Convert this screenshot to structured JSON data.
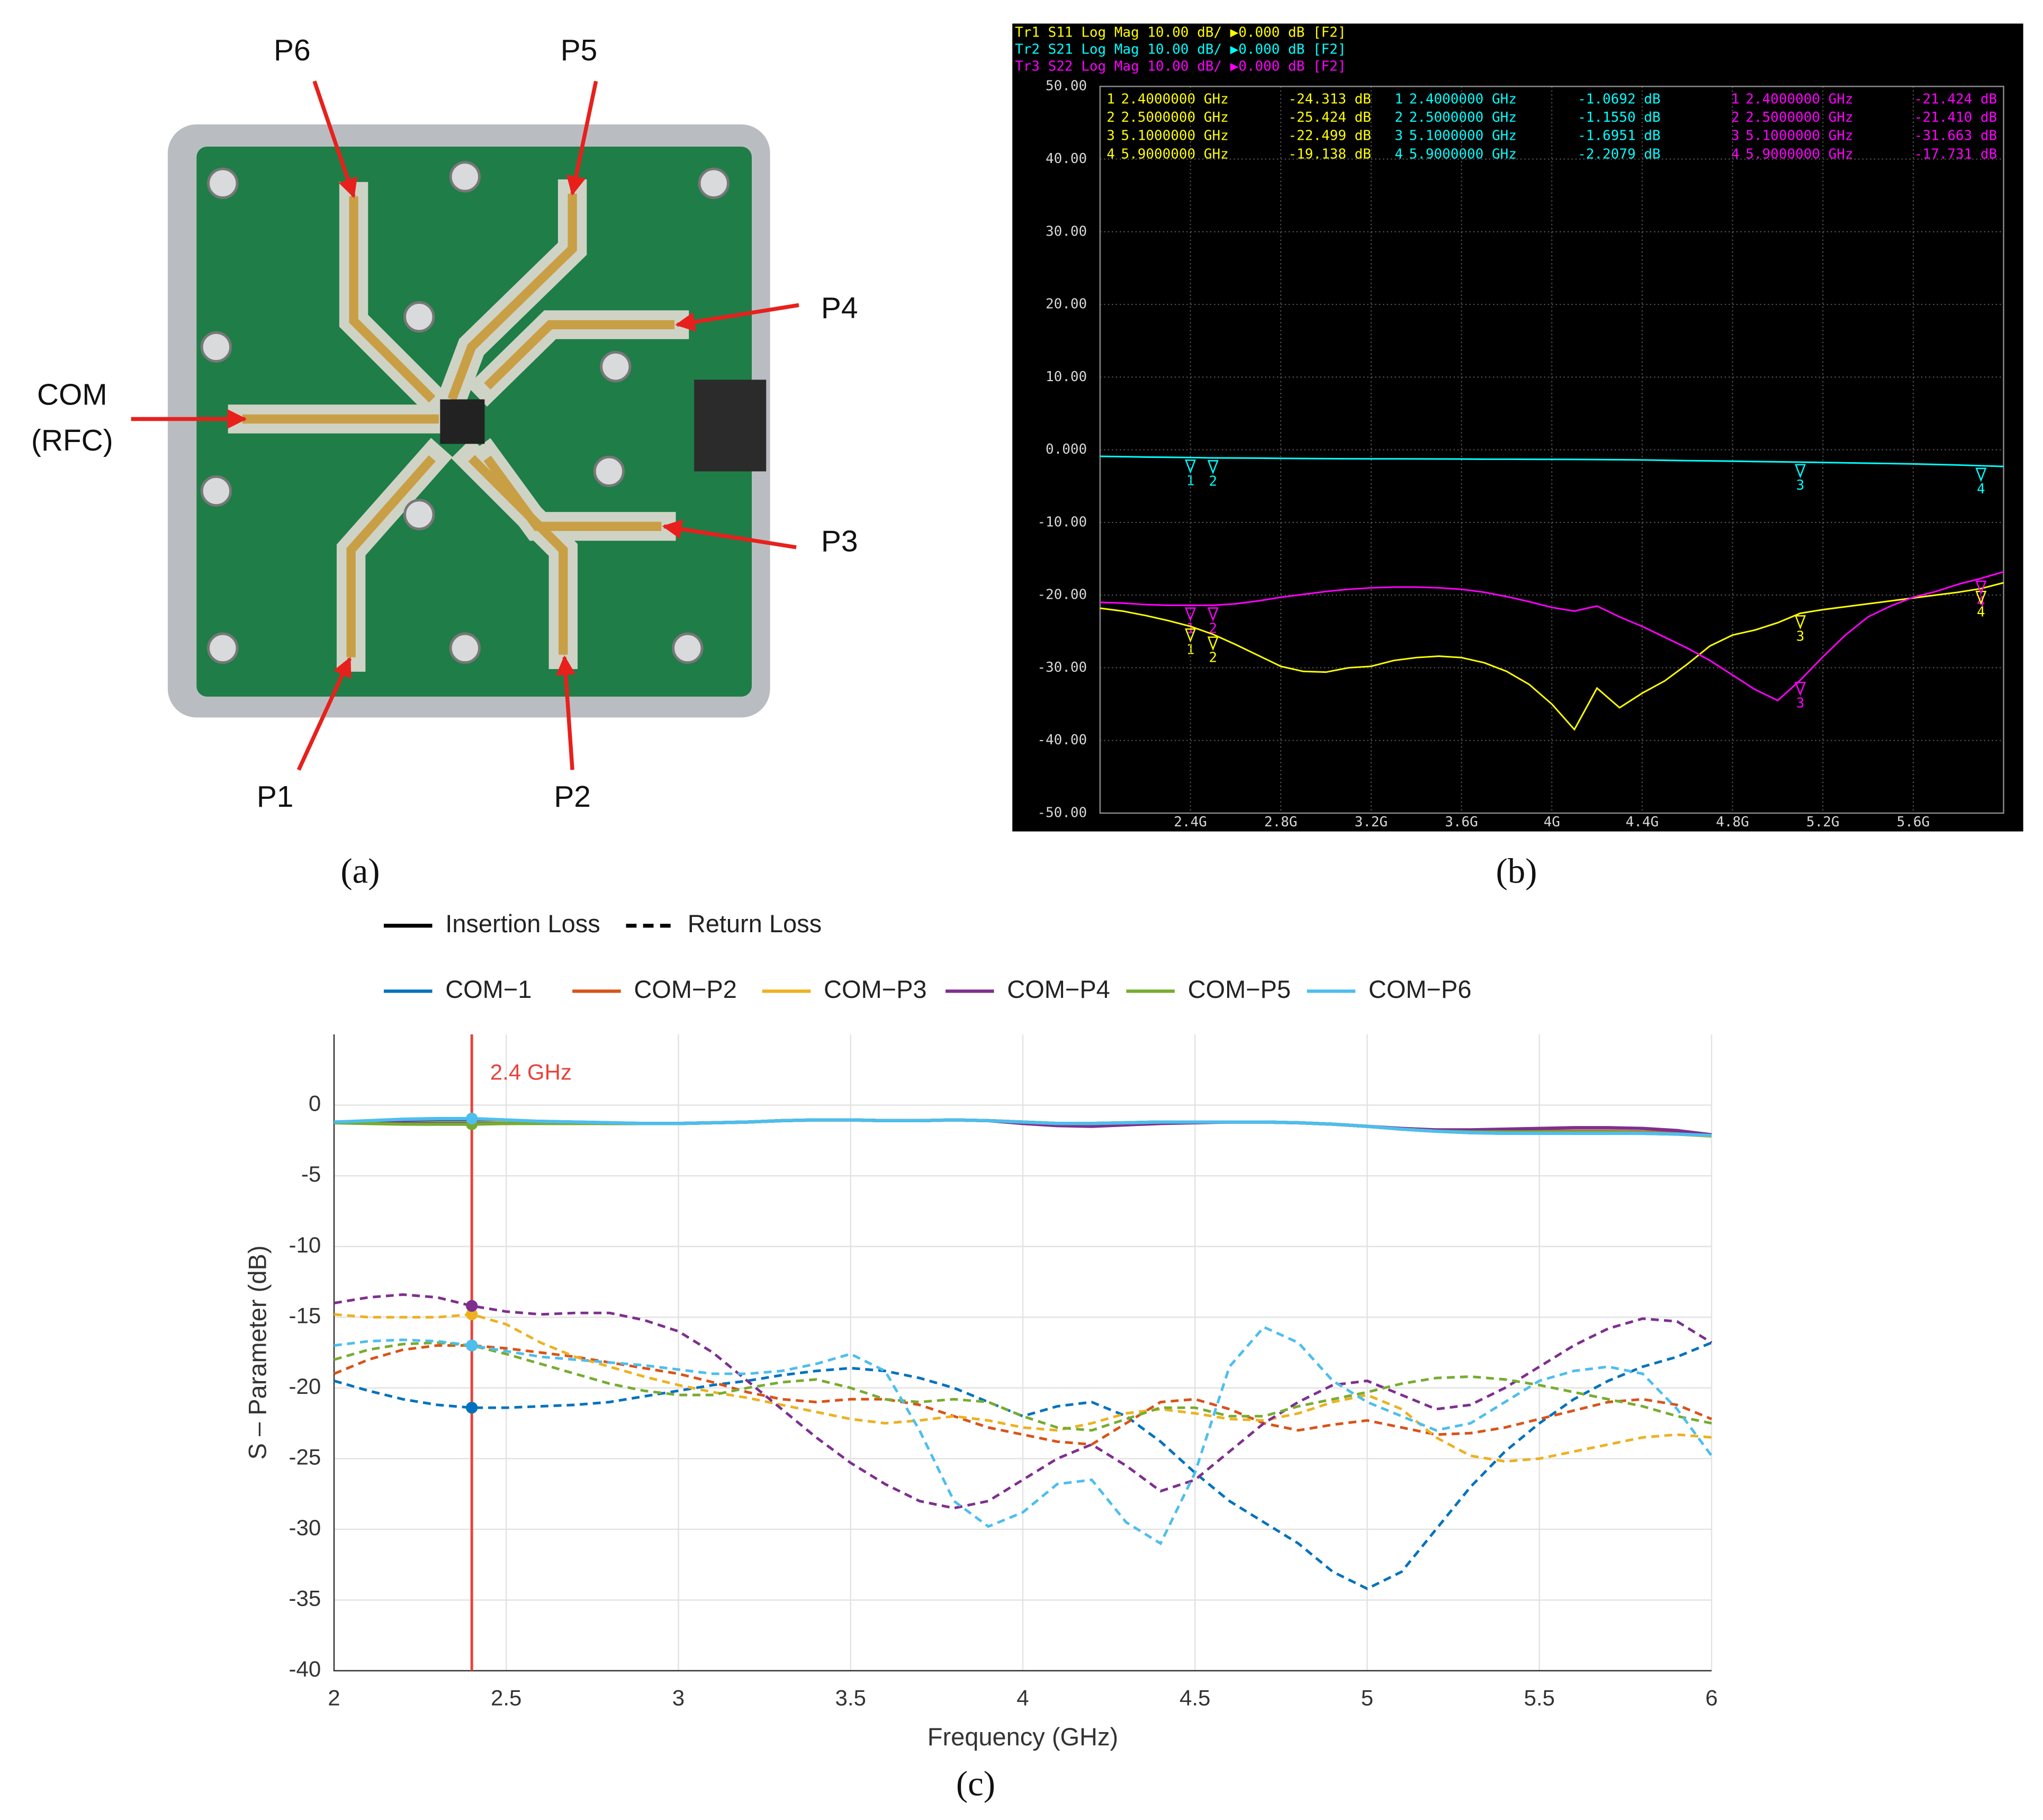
{
  "panel_a": {
    "panel_label": "(a)",
    "labels": [
      "P6",
      "P5",
      "P4",
      "COM",
      "(RFC)",
      "P3",
      "P1",
      "P2"
    ]
  },
  "chart_data": [
    {
      "type": "line",
      "panel_label": "(b)",
      "background": "#000000",
      "grid": true,
      "x": [
        2,
        2.1,
        2.2,
        2.3,
        2.4,
        2.5,
        2.6,
        2.7,
        2.8,
        2.9,
        3,
        3.1,
        3.2,
        3.3,
        3.4,
        3.5,
        3.6,
        3.7,
        3.8,
        3.9,
        4,
        4.1,
        4.2,
        4.3,
        4.4,
        4.5,
        4.6,
        4.7,
        4.8,
        4.9,
        5,
        5.1,
        5.2,
        5.3,
        5.4,
        5.5,
        5.6,
        5.7,
        5.8,
        5.9,
        6
      ],
      "xlim": [
        2,
        6
      ],
      "xticks": [
        {
          "value": 2.4,
          "label": "2.4G"
        },
        {
          "value": 2.8,
          "label": "2.8G"
        },
        {
          "value": 3.2,
          "label": "3.2G"
        },
        {
          "value": 3.6,
          "label": "3.6G"
        },
        {
          "value": 4,
          "label": "4G"
        },
        {
          "value": 4.4,
          "label": "4.4G"
        },
        {
          "value": 4.8,
          "label": "4.8G"
        },
        {
          "value": 5.2,
          "label": "5.2G"
        },
        {
          "value": 5.6,
          "label": "5.6G"
        }
      ],
      "ylim": [
        -50,
        50
      ],
      "yticks": [
        {
          "value": 50,
          "label": "50.00"
        },
        {
          "value": 40,
          "label": "40.00"
        },
        {
          "value": 30,
          "label": "30.00"
        },
        {
          "value": 20,
          "label": "20.00"
        },
        {
          "value": 10,
          "label": "10.00"
        },
        {
          "value": 0,
          "label": "0.000"
        },
        {
          "value": -10,
          "label": "-10.00"
        },
        {
          "value": -20,
          "label": "-20.00"
        },
        {
          "value": -30,
          "label": "-30.00"
        },
        {
          "value": -40,
          "label": "-40.00"
        },
        {
          "value": -50,
          "label": "-50.00"
        }
      ],
      "series": [
        {
          "name": "Tr1 S11 Log Mag 10.00 dB/ ▶0.000 dB [F2]",
          "color": "#ffff00",
          "values": [
            -21.8,
            -22.2,
            -22.8,
            -23.5,
            -24.3,
            -25.4,
            -26.8,
            -28.3,
            -29.8,
            -30.5,
            -30.6,
            -30,
            -29.8,
            -29,
            -28.6,
            -28.4,
            -28.6,
            -29.3,
            -30.5,
            -32.3,
            -35,
            -38.5,
            -32.8,
            -35.5,
            -33.5,
            -31.8,
            -29.5,
            -27,
            -25.5,
            -24.8,
            -23.8,
            -22.5,
            -22,
            -21.6,
            -21.2,
            -20.8,
            -20.4,
            -20,
            -19.6,
            -19.1,
            -18.3
          ],
          "markers": {
            "names": [
              "1",
              "2",
              "3",
              "4"
            ],
            "x": [
              2.4,
              2.5,
              5.1,
              5.9
            ],
            "x_labels": [
              "2.4000000 GHz",
              "2.5000000 GHz",
              "5.1000000 GHz",
              "5.9000000 GHz"
            ],
            "values": [
              -24.313,
              -25.424,
              -22.499,
              -19.138
            ],
            "value_labels": [
              "-24.313 dB",
              "-25.424 dB",
              "-22.499 dB",
              "-19.138 dB"
            ]
          }
        },
        {
          "name": "Tr2 S21 Log Mag 10.00 dB/ ▶0.000 dB [F2]",
          "color": "#00ffff",
          "values": [
            -0.9,
            -0.95,
            -1,
            -1.03,
            -1.07,
            -1.12,
            -1.13,
            -1.15,
            -1.18,
            -1.2,
            -1.22,
            -1.24,
            -1.25,
            -1.25,
            -1.26,
            -1.27,
            -1.28,
            -1.3,
            -1.3,
            -1.31,
            -1.32,
            -1.33,
            -1.35,
            -1.37,
            -1.4,
            -1.45,
            -1.5,
            -1.53,
            -1.57,
            -1.62,
            -1.66,
            -1.7,
            -1.75,
            -1.8,
            -1.85,
            -1.9,
            -1.95,
            -2.02,
            -2.1,
            -2.2,
            -2.3
          ],
          "markers": {
            "names": [
              "1",
              "2",
              "3",
              "4"
            ],
            "x": [
              2.4,
              2.5,
              5.1,
              5.9
            ],
            "x_labels": [
              "2.4000000 GHz",
              "2.5000000 GHz",
              "5.1000000 GHz",
              "5.9000000 GHz"
            ],
            "values": [
              -1.0692,
              -1.155,
              -1.6951,
              -2.2079
            ],
            "value_labels": [
              "-1.0692 dB",
              "-1.1550 dB",
              "-1.6951 dB",
              "-2.2079 dB"
            ]
          }
        },
        {
          "name": "Tr3 S22 Log Mag 10.00 dB/ ▶0.000 dB [F2]",
          "color": "#ff00ff",
          "values": [
            -21,
            -21.1,
            -21.3,
            -21.4,
            -21.4,
            -21.4,
            -21.2,
            -20.8,
            -20.3,
            -19.9,
            -19.5,
            -19.2,
            -19,
            -18.9,
            -18.9,
            -19,
            -19.2,
            -19.6,
            -20.2,
            -20.9,
            -21.7,
            -22.2,
            -21.5,
            -23,
            -24.3,
            -25.8,
            -27.3,
            -29,
            -31,
            -33,
            -34.5,
            -31.7,
            -28.5,
            -25.5,
            -23,
            -21.5,
            -20.3,
            -19.5,
            -18.5,
            -17.7,
            -16.8
          ],
          "markers": {
            "names": [
              "1",
              "2",
              "3",
              "4"
            ],
            "x": [
              2.4,
              2.5,
              5.1,
              5.9
            ],
            "x_labels": [
              "2.4000000 GHz",
              "2.5000000 GHz",
              "5.1000000 GHz",
              "5.9000000 GHz"
            ],
            "values": [
              -21.424,
              -21.41,
              -31.663,
              -17.731
            ],
            "value_labels": [
              "-21.424 dB",
              "-21.410 dB",
              "-31.663 dB",
              "-17.731 dB"
            ]
          }
        }
      ]
    },
    {
      "type": "line",
      "panel_label": "(c)",
      "grid": true,
      "x_label": "Frequency (GHz)",
      "y_label": "S – Parameter (dB)",
      "style_legend": [
        {
          "name": "Insertion Loss",
          "dashed": false
        },
        {
          "name": "Return Loss",
          "dashed": true
        }
      ],
      "marker": {
        "x": 2.4,
        "label": "2.4 GHz",
        "color": "#e8423a"
      },
      "x": [
        2,
        2.1,
        2.2,
        2.3,
        2.4,
        2.5,
        2.6,
        2.7,
        2.8,
        2.9,
        3,
        3.1,
        3.2,
        3.3,
        3.4,
        3.5,
        3.6,
        3.7,
        3.8,
        3.9,
        4,
        4.1,
        4.2,
        4.3,
        4.4,
        4.5,
        4.6,
        4.7,
        4.8,
        4.9,
        5,
        5.1,
        5.2,
        5.3,
        5.4,
        5.5,
        5.6,
        5.7,
        5.8,
        5.9,
        6
      ],
      "xlim": [
        2,
        6
      ],
      "xticks": [
        2,
        2.5,
        3,
        3.5,
        4,
        4.5,
        5,
        5.5,
        6
      ],
      "ylim": [
        -40,
        5
      ],
      "yticks": [
        0,
        -5,
        -10,
        -15,
        -20,
        -25,
        -30,
        -35,
        -40
      ],
      "series": [
        {
          "name": "COM−1",
          "color": "#0072bd",
          "insertion_loss": [
            -1.2,
            -1.15,
            -1.1,
            -1.05,
            -1.05,
            -1.1,
            -1.15,
            -1.2,
            -1.25,
            -1.3,
            -1.3,
            -1.25,
            -1.2,
            -1.1,
            -1.05,
            -1.05,
            -1.1,
            -1.1,
            -1.05,
            -1.1,
            -1.2,
            -1.3,
            -1.3,
            -1.25,
            -1.2,
            -1.2,
            -1.2,
            -1.2,
            -1.25,
            -1.35,
            -1.5,
            -1.7,
            -1.85,
            -1.95,
            -2,
            -2,
            -2,
            -2,
            -2,
            -2.05,
            -2.15
          ],
          "return_loss": [
            -19.5,
            -20.2,
            -20.8,
            -21.2,
            -21.4,
            -21.4,
            -21.3,
            -21.2,
            -21,
            -20.6,
            -20.2,
            -19.8,
            -19.5,
            -19.1,
            -18.8,
            -18.6,
            -18.8,
            -19.3,
            -20,
            -21,
            -22,
            -21.3,
            -21,
            -22,
            -23.8,
            -26,
            -28,
            -29.5,
            -31,
            -33,
            -34.2,
            -33,
            -30,
            -27,
            -24.5,
            -22.5,
            -20.8,
            -19.5,
            -18.5,
            -17.8,
            -16.8
          ]
        },
        {
          "name": "COM−P2",
          "color": "#d95319",
          "insertion_loss": [
            -1.25,
            -1.25,
            -1.3,
            -1.3,
            -1.3,
            -1.3,
            -1.25,
            -1.25,
            -1.3,
            -1.3,
            -1.3,
            -1.25,
            -1.2,
            -1.1,
            -1.05,
            -1.05,
            -1.1,
            -1.1,
            -1.05,
            -1.1,
            -1.2,
            -1.3,
            -1.3,
            -1.25,
            -1.2,
            -1.2,
            -1.2,
            -1.2,
            -1.25,
            -1.35,
            -1.5,
            -1.7,
            -1.8,
            -1.85,
            -1.85,
            -1.85,
            -1.85,
            -1.85,
            -1.9,
            -2,
            -2.15
          ],
          "return_loss": [
            -19,
            -18,
            -17.3,
            -17,
            -17,
            -17.2,
            -17.5,
            -17.8,
            -18.2,
            -18.6,
            -19,
            -19.6,
            -20.3,
            -20.8,
            -21,
            -20.8,
            -20.8,
            -21.2,
            -22,
            -22.8,
            -23.3,
            -23.8,
            -24,
            -22.5,
            -21,
            -20.8,
            -21.5,
            -22.5,
            -23,
            -22.6,
            -22.3,
            -22.8,
            -23.3,
            -23.2,
            -22.8,
            -22.2,
            -21.6,
            -21,
            -20.8,
            -21.2,
            -22.2
          ]
        },
        {
          "name": "COM−P3",
          "color": "#edb120",
          "insertion_loss": [
            -1.2,
            -1.2,
            -1.25,
            -1.25,
            -1.25,
            -1.25,
            -1.25,
            -1.25,
            -1.3,
            -1.3,
            -1.3,
            -1.25,
            -1.2,
            -1.1,
            -1.05,
            -1.05,
            -1.1,
            -1.1,
            -1.05,
            -1.1,
            -1.2,
            -1.3,
            -1.3,
            -1.25,
            -1.2,
            -1.2,
            -1.2,
            -1.2,
            -1.25,
            -1.35,
            -1.5,
            -1.7,
            -1.85,
            -1.95,
            -2,
            -2,
            -2,
            -2,
            -2,
            -2.05,
            -2.2
          ],
          "return_loss": [
            -14.8,
            -15,
            -15,
            -15,
            -14.8,
            -15.5,
            -16.8,
            -17.8,
            -18.5,
            -19.2,
            -19.8,
            -20.3,
            -20.7,
            -21.2,
            -21.7,
            -22.2,
            -22.5,
            -22.3,
            -22,
            -22.3,
            -22.8,
            -23,
            -22.5,
            -21.8,
            -21.5,
            -21.8,
            -22.2,
            -22.3,
            -21.8,
            -21,
            -20.5,
            -21.5,
            -23.5,
            -24.8,
            -25.2,
            -25,
            -24.5,
            -24,
            -23.5,
            -23.3,
            -23.5
          ]
        },
        {
          "name": "COM−P4",
          "color": "#7e2f8e",
          "insertion_loss": [
            -1.2,
            -1.2,
            -1.25,
            -1.3,
            -1.3,
            -1.3,
            -1.25,
            -1.25,
            -1.3,
            -1.3,
            -1.3,
            -1.25,
            -1.2,
            -1.1,
            -1.05,
            -1.05,
            -1.1,
            -1.1,
            -1.05,
            -1.1,
            -1.3,
            -1.45,
            -1.5,
            -1.4,
            -1.3,
            -1.25,
            -1.2,
            -1.2,
            -1.25,
            -1.35,
            -1.5,
            -1.65,
            -1.75,
            -1.75,
            -1.7,
            -1.65,
            -1.6,
            -1.6,
            -1.65,
            -1.8,
            -2.1
          ],
          "return_loss": [
            -14,
            -13.6,
            -13.4,
            -13.6,
            -14.2,
            -14.6,
            -14.8,
            -14.7,
            -14.7,
            -15.2,
            -16,
            -17.5,
            -19.5,
            -21.5,
            -23.5,
            -25.3,
            -26.8,
            -28,
            -28.5,
            -28,
            -26.5,
            -25,
            -24,
            -25.5,
            -27.3,
            -26.5,
            -24.5,
            -22.5,
            -21,
            -19.8,
            -19.5,
            -20.5,
            -21.5,
            -21.2,
            -20,
            -18.5,
            -17,
            -15.8,
            -15.1,
            -15.3,
            -16.8
          ]
        },
        {
          "name": "COM−P5",
          "color": "#77ac30",
          "insertion_loss": [
            -1.25,
            -1.3,
            -1.35,
            -1.35,
            -1.35,
            -1.3,
            -1.3,
            -1.3,
            -1.3,
            -1.3,
            -1.3,
            -1.25,
            -1.2,
            -1.1,
            -1.05,
            -1.05,
            -1.1,
            -1.1,
            -1.05,
            -1.1,
            -1.2,
            -1.3,
            -1.3,
            -1.25,
            -1.2,
            -1.2,
            -1.2,
            -1.2,
            -1.25,
            -1.35,
            -1.5,
            -1.7,
            -1.85,
            -1.9,
            -1.9,
            -1.9,
            -1.9,
            -1.9,
            -1.95,
            -2.05,
            -2.15
          ],
          "return_loss": [
            -18,
            -17.3,
            -16.9,
            -16.8,
            -17,
            -17.6,
            -18.3,
            -19,
            -19.7,
            -20.2,
            -20.5,
            -20.5,
            -20,
            -19.6,
            -19.4,
            -20,
            -20.8,
            -21,
            -20.8,
            -21,
            -22,
            -22.8,
            -23,
            -22.2,
            -21.4,
            -21.4,
            -22,
            -22,
            -21.3,
            -20.8,
            -20.3,
            -19.7,
            -19.3,
            -19.2,
            -19.4,
            -19.8,
            -20.3,
            -20.8,
            -21.3,
            -22,
            -22.5
          ]
        },
        {
          "name": "COM−P6",
          "color": "#4dbeee",
          "insertion_loss": [
            -1.2,
            -1.1,
            -1,
            -0.95,
            -0.95,
            -1.05,
            -1.15,
            -1.2,
            -1.25,
            -1.3,
            -1.3,
            -1.25,
            -1.2,
            -1.1,
            -1.05,
            -1.05,
            -1.1,
            -1.1,
            -1.05,
            -1.1,
            -1.2,
            -1.3,
            -1.3,
            -1.25,
            -1.2,
            -1.2,
            -1.2,
            -1.2,
            -1.25,
            -1.35,
            -1.5,
            -1.7,
            -1.85,
            -1.95,
            -2,
            -2,
            -2,
            -2,
            -2,
            -2.05,
            -2.15
          ],
          "return_loss": [
            -17,
            -16.7,
            -16.6,
            -16.7,
            -17,
            -17.4,
            -17.8,
            -18,
            -18.2,
            -18.4,
            -18.7,
            -19,
            -19,
            -18.8,
            -18.3,
            -17.6,
            -18.8,
            -23,
            -28,
            -29.8,
            -28.8,
            -26.8,
            -26.5,
            -29.5,
            -31,
            -26,
            -18.5,
            -15.7,
            -16.8,
            -19.5,
            -21,
            -22,
            -23,
            -22.5,
            -21,
            -19.5,
            -18.8,
            -18.5,
            -19,
            -21.5,
            -24.8
          ]
        }
      ]
    }
  ]
}
